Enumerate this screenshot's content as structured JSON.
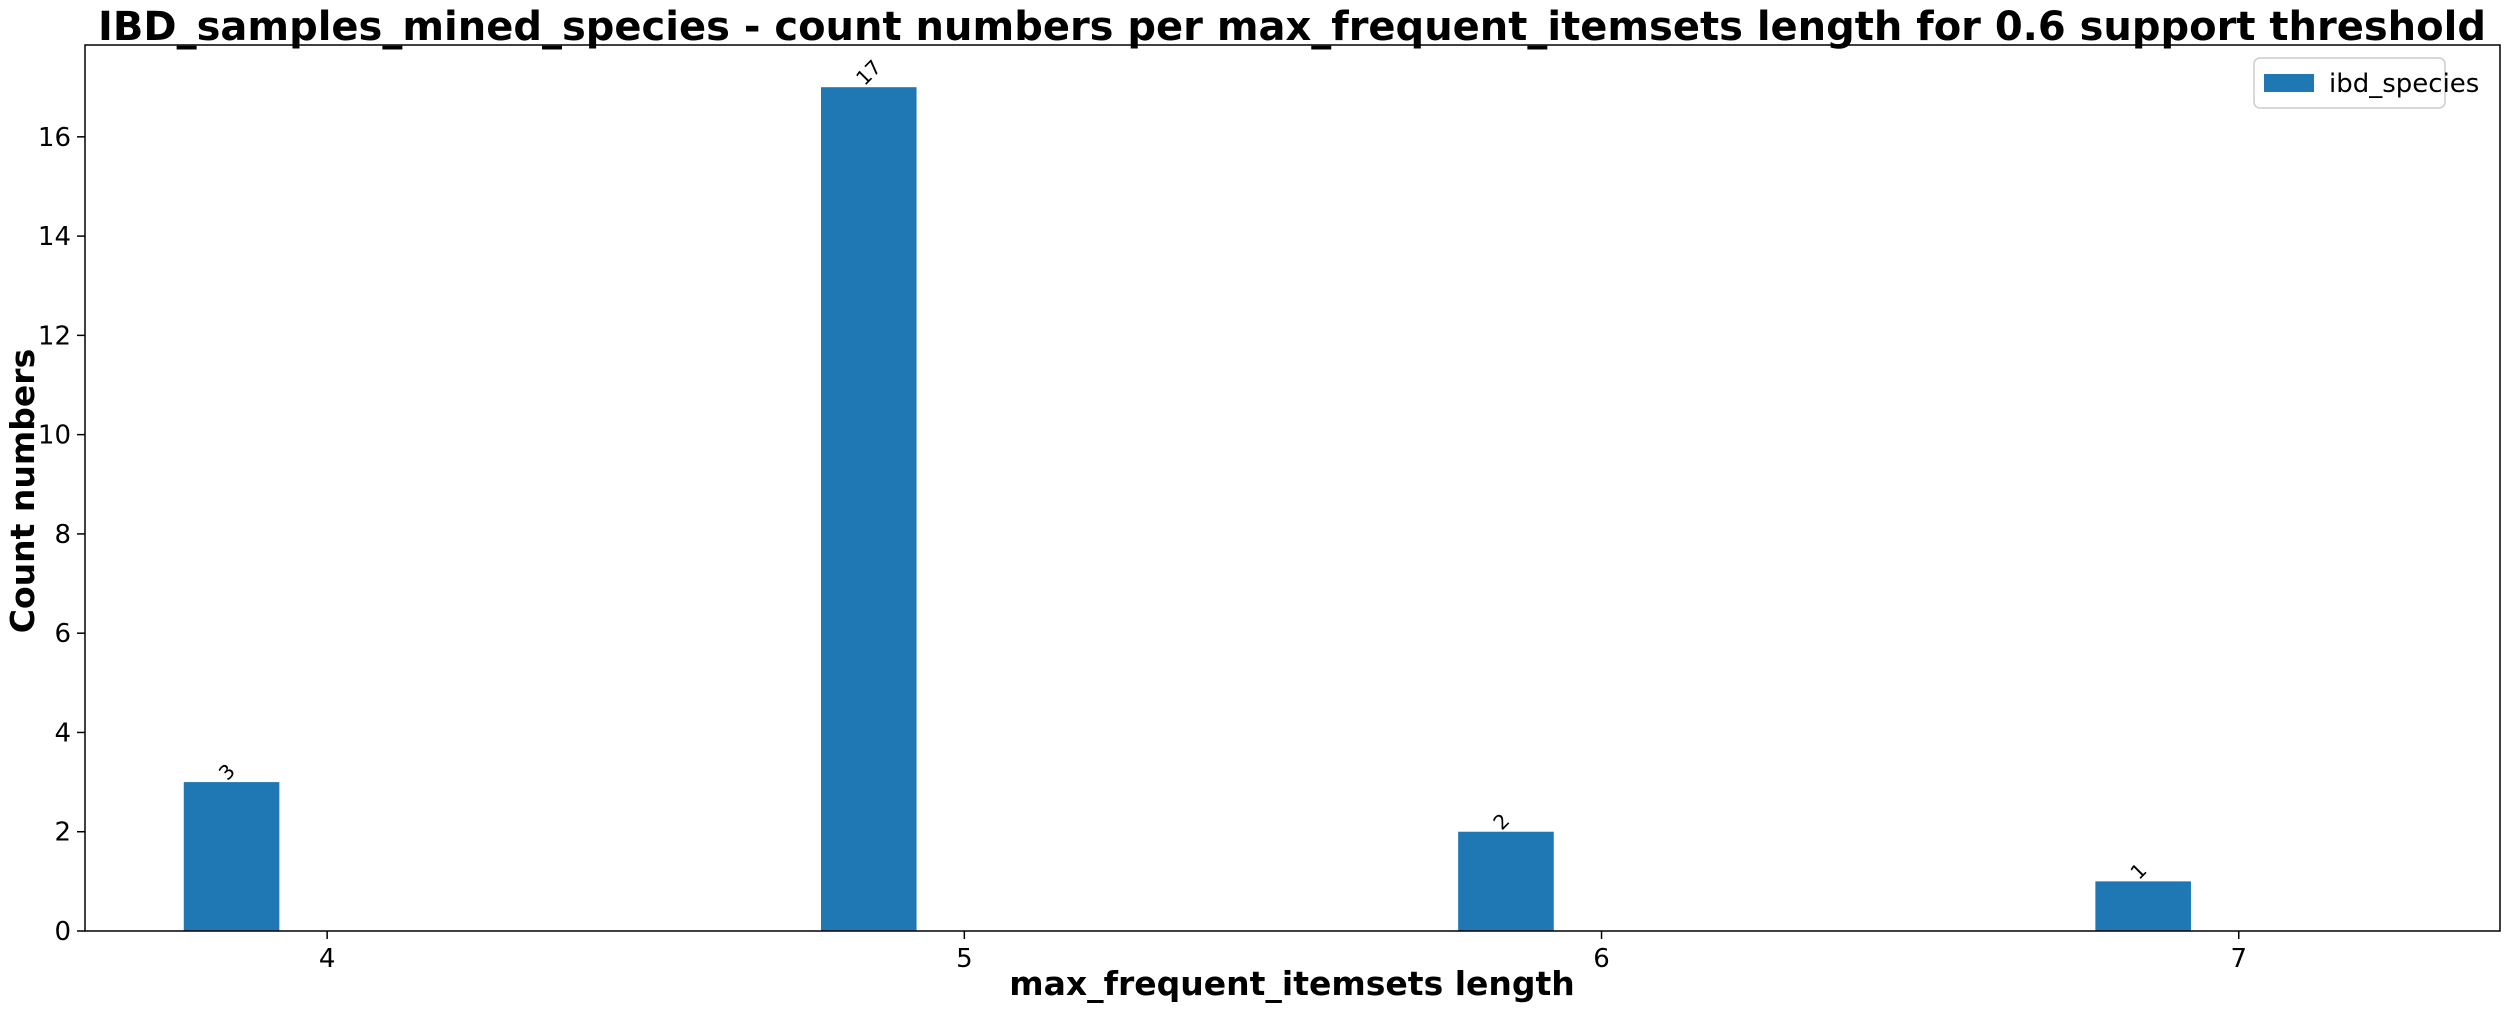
{
  "chart_data": {
    "type": "bar",
    "title": "IBD_samples_mined_species - count numbers per max_frequent_itemsets length for 0.6 support threshold",
    "xlabel": "max_frequent_itemsets length",
    "ylabel": "Count numbers",
    "x_ticks": [
      4,
      5,
      6,
      7
    ],
    "xlim": [
      3.62,
      7.41
    ],
    "ylim": [
      0,
      17.85
    ],
    "y_ticks": [
      0,
      2,
      4,
      6,
      8,
      10,
      12,
      14,
      16
    ],
    "grid": false,
    "legend_position": "top-right",
    "bar_data_labels": true,
    "series": [
      {
        "name": "ibd_species",
        "color": "#1f77b4",
        "x": [
          3.85,
          4.85,
          5.85,
          6.85
        ],
        "values": [
          3,
          17,
          2,
          1
        ],
        "bar_width": 0.15
      }
    ]
  }
}
